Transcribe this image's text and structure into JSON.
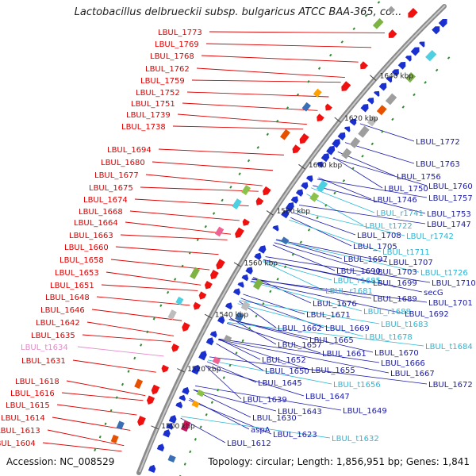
{
  "title": "Lactobacillus delbrueckii subsp. bulgaricus ATCC BAA-365, co...",
  "footer": {
    "accession": "Accession: NC_008529",
    "summary": "Topology: circular; Length: 1,856,951 bp; Genes: 1,841"
  },
  "colors": {
    "reverse_label": "#dd0000",
    "forward_label": "#1a1aa8",
    "rna_label": "#2ab7d6",
    "trna_reverse_label": "#e888cc",
    "backbone": "#888888"
  },
  "ticks": [
    "1500 kbp",
    "1520 kbp",
    "1540 kbp",
    "1560 kbp",
    "1580 kbp",
    "1600 kbp",
    "1620 kbp",
    "1640 kbp"
  ],
  "left_labels": [
    "LBUL_1773",
    "LBUL_1769",
    "LBUL_1768",
    "LBUL_1762",
    "LBUL_1759",
    "LBUL_1752",
    "LBUL_1751",
    "LBUL_1739",
    "LBUL_1738",
    "LBUL_1694",
    "LBUL_1680",
    "LBUL_1677",
    "LBUL_1675",
    "LBUL_1674",
    "LBUL_1668",
    "LBUL_1664",
    "LBUL_1663",
    "LBUL_1660",
    "LBUL_1658",
    "LBUL_1653",
    "LBUL_1651",
    "LBUL_1648",
    "LBUL_1646",
    "LBUL_1642",
    "LBUL_1635",
    "LBUL_t1634",
    "LBUL_1631",
    "LBUL_1618",
    "LBUL_1616",
    "LBUL_1615",
    "LBUL_1614",
    "LBUL_1613",
    "LBUL_1604"
  ],
  "right_labels": [
    "LBUL_1772",
    "LBUL_1763",
    "LBUL_1756",
    "LBUL_1760",
    "LBUL_1750",
    "LBUL_1757",
    "LBUL_1746",
    "LBUL_r1741",
    "LBUL_1753",
    "LBUL_t1722",
    "LBUL_1747",
    "LBUL_1708",
    "LBUL_r1742",
    "LBUL_1705",
    "LBUL_t1711",
    "LBUL_1697",
    "LBUL_1707",
    "LBUL_1690",
    "LBUL_1703",
    "LBUL_t1726",
    "LBUL_r1685",
    "LBUL_1699",
    "LBUL_1710",
    "LBUL_r1681",
    "secG",
    "LBUL_1689",
    "LBUL_1701",
    "LBUL_1676",
    "LBUL_r1688",
    "LBUL_1692",
    "LBUL_1671",
    "LBUL_t1683",
    "LBUL_1662",
    "LBUL_1669",
    "LBUL_t1678",
    "LBUL_1665",
    "LBUL_t1684",
    "LBUL_1657",
    "LBUL_1661",
    "LBUL_1670",
    "LBUL_1652",
    "LBUL_1666",
    "LBUL_1650",
    "LBUL_1655",
    "LBUL_1667",
    "LBUL_1645",
    "LBUL_t1656",
    "LBUL_1672",
    "LBUL_1647",
    "LBUL_1639",
    "LBUL_1643",
    "LBUL_1649",
    "LBUL_1630",
    "aspA",
    "LBUL_1623",
    "LBUL_t1632",
    "LBUL_1612"
  ]
}
